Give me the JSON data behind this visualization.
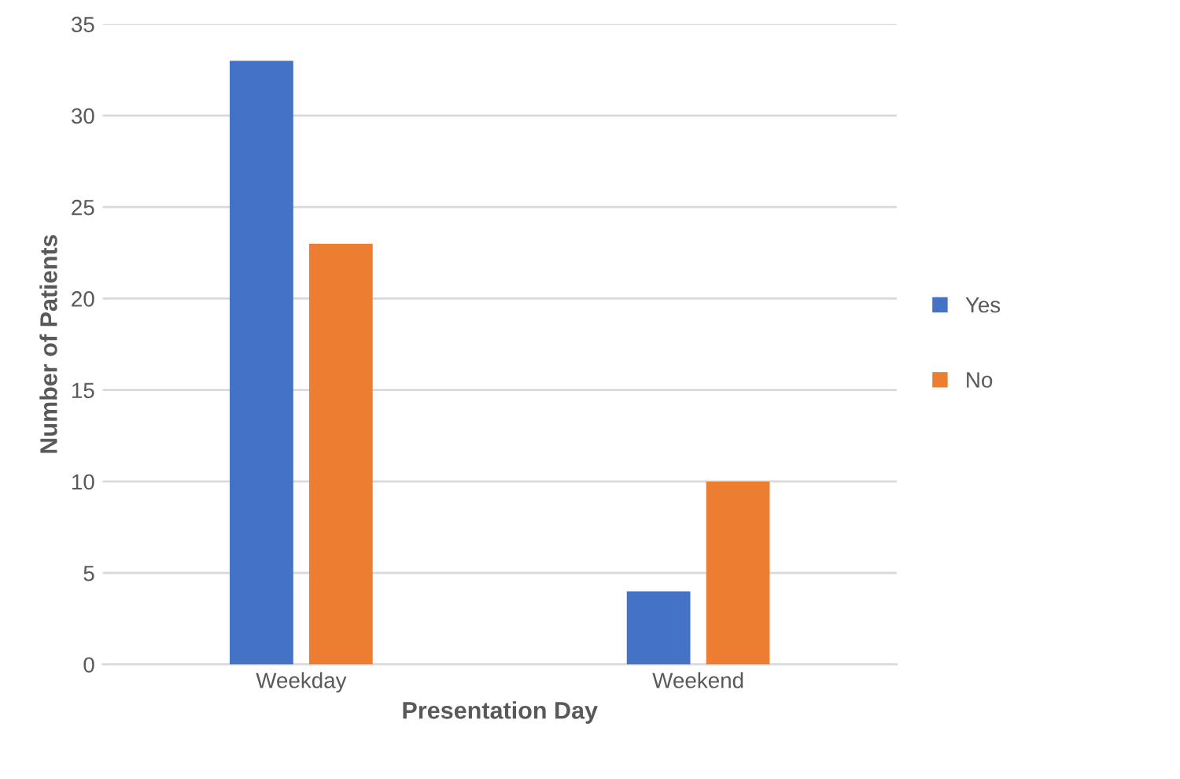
{
  "chart_data": {
    "type": "bar",
    "xlabel": "Presentation Day",
    "ylabel": "Number of Patients",
    "categories": [
      "Weekday",
      "Weekend"
    ],
    "series": [
      {
        "name": "Yes",
        "color": "#4472c4",
        "values": [
          33,
          4
        ]
      },
      {
        "name": "No",
        "color": "#ed7d31",
        "values": [
          23,
          10
        ]
      }
    ],
    "ylim": [
      0,
      35
    ],
    "yticks": [
      0,
      5,
      10,
      15,
      20,
      25,
      30,
      35
    ],
    "grid": "y",
    "legend": "right"
  }
}
